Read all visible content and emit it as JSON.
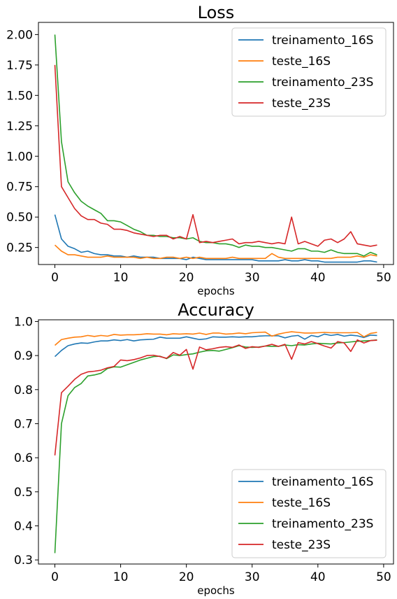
{
  "chart_data": [
    {
      "type": "line",
      "title": "Loss",
      "xlabel": "epochs",
      "ylabel": "",
      "xlim": [
        -2.5,
        51.5
      ],
      "ylim": [
        0.11,
        2.1
      ],
      "xticks": [
        0,
        10,
        20,
        30,
        40,
        50
      ],
      "yticks": [
        0.25,
        0.5,
        0.75,
        1.0,
        1.25,
        1.5,
        1.75,
        2.0
      ],
      "ytick_labels": [
        "0.25",
        "0.50",
        "0.75",
        "1.00",
        "1.25",
        "1.50",
        "1.75",
        "2.00"
      ],
      "legend_position": "top-right",
      "x": [
        0,
        1,
        2,
        3,
        4,
        5,
        6,
        7,
        8,
        9,
        10,
        11,
        12,
        13,
        14,
        15,
        16,
        17,
        18,
        19,
        20,
        21,
        22,
        23,
        24,
        25,
        26,
        27,
        28,
        29,
        30,
        31,
        32,
        33,
        34,
        35,
        36,
        37,
        38,
        39,
        40,
        41,
        42,
        43,
        44,
        45,
        46,
        47,
        48,
        49
      ],
      "series": [
        {
          "name": "treinamento_16S",
          "color": "#1f77b4",
          "values": [
            0.52,
            0.32,
            0.26,
            0.24,
            0.21,
            0.22,
            0.2,
            0.19,
            0.19,
            0.18,
            0.18,
            0.17,
            0.18,
            0.17,
            0.17,
            0.17,
            0.16,
            0.16,
            0.16,
            0.16,
            0.15,
            0.17,
            0.16,
            0.15,
            0.15,
            0.15,
            0.15,
            0.15,
            0.15,
            0.15,
            0.15,
            0.14,
            0.14,
            0.14,
            0.14,
            0.15,
            0.14,
            0.14,
            0.15,
            0.14,
            0.14,
            0.13,
            0.13,
            0.13,
            0.13,
            0.13,
            0.13,
            0.14,
            0.14,
            0.13
          ]
        },
        {
          "name": "teste_16S",
          "color": "#ff7f0e",
          "values": [
            0.27,
            0.22,
            0.19,
            0.19,
            0.18,
            0.17,
            0.17,
            0.17,
            0.18,
            0.17,
            0.17,
            0.17,
            0.17,
            0.16,
            0.17,
            0.16,
            0.16,
            0.17,
            0.17,
            0.16,
            0.17,
            0.16,
            0.17,
            0.16,
            0.16,
            0.16,
            0.16,
            0.17,
            0.16,
            0.16,
            0.16,
            0.16,
            0.16,
            0.2,
            0.17,
            0.16,
            0.16,
            0.16,
            0.16,
            0.16,
            0.16,
            0.16,
            0.16,
            0.17,
            0.17,
            0.17,
            0.18,
            0.17,
            0.19,
            0.18
          ]
        },
        {
          "name": "treinamento_23S",
          "color": "#2ca02c",
          "values": [
            2.0,
            1.12,
            0.79,
            0.7,
            0.63,
            0.59,
            0.56,
            0.53,
            0.47,
            0.47,
            0.46,
            0.43,
            0.4,
            0.38,
            0.35,
            0.35,
            0.34,
            0.34,
            0.33,
            0.33,
            0.32,
            0.33,
            0.3,
            0.29,
            0.29,
            0.28,
            0.28,
            0.27,
            0.25,
            0.27,
            0.26,
            0.26,
            0.25,
            0.25,
            0.24,
            0.23,
            0.22,
            0.24,
            0.24,
            0.22,
            0.22,
            0.21,
            0.23,
            0.21,
            0.2,
            0.2,
            0.2,
            0.18,
            0.21,
            0.19
          ]
        },
        {
          "name": "teste_23S",
          "color": "#d62728",
          "values": [
            1.75,
            0.75,
            0.66,
            0.57,
            0.51,
            0.48,
            0.48,
            0.45,
            0.44,
            0.4,
            0.4,
            0.39,
            0.37,
            0.36,
            0.35,
            0.34,
            0.35,
            0.35,
            0.32,
            0.34,
            0.32,
            0.52,
            0.29,
            0.3,
            0.29,
            0.3,
            0.31,
            0.32,
            0.28,
            0.29,
            0.29,
            0.3,
            0.29,
            0.28,
            0.29,
            0.28,
            0.5,
            0.28,
            0.3,
            0.28,
            0.26,
            0.31,
            0.32,
            0.29,
            0.32,
            0.38,
            0.28,
            0.27,
            0.26,
            0.27
          ]
        }
      ]
    },
    {
      "type": "line",
      "title": "Accuracy",
      "xlabel": "epochs",
      "ylabel": "",
      "xlim": [
        -2.5,
        51.5
      ],
      "ylim": [
        0.288,
        1.005
      ],
      "xticks": [
        0,
        10,
        20,
        30,
        40,
        50
      ],
      "yticks": [
        0.3,
        0.4,
        0.5,
        0.6,
        0.7,
        0.8,
        0.9,
        1.0
      ],
      "ytick_labels": [
        "0.3",
        "0.4",
        "0.5",
        "0.6",
        "0.7",
        "0.8",
        "0.9",
        "1.0"
      ],
      "legend_position": "bottom-right",
      "x": [
        0,
        1,
        2,
        3,
        4,
        5,
        6,
        7,
        8,
        9,
        10,
        11,
        12,
        13,
        14,
        15,
        16,
        17,
        18,
        19,
        20,
        21,
        22,
        23,
        24,
        25,
        26,
        27,
        28,
        29,
        30,
        31,
        32,
        33,
        34,
        35,
        36,
        37,
        38,
        39,
        40,
        41,
        42,
        43,
        44,
        45,
        46,
        47,
        48,
        49
      ],
      "series": [
        {
          "name": "treinamento_16S",
          "color": "#1f77b4",
          "values": [
            0.897,
            0.915,
            0.929,
            0.934,
            0.937,
            0.936,
            0.94,
            0.943,
            0.943,
            0.946,
            0.944,
            0.947,
            0.943,
            0.946,
            0.947,
            0.948,
            0.954,
            0.951,
            0.951,
            0.951,
            0.955,
            0.951,
            0.947,
            0.949,
            0.955,
            0.954,
            0.954,
            0.955,
            0.954,
            0.955,
            0.955,
            0.957,
            0.958,
            0.958,
            0.958,
            0.952,
            0.957,
            0.959,
            0.948,
            0.959,
            0.955,
            0.963,
            0.959,
            0.962,
            0.957,
            0.96,
            0.958,
            0.953,
            0.96,
            0.959
          ]
        },
        {
          "name": "teste_16S",
          "color": "#ff7f0e",
          "values": [
            0.93,
            0.947,
            0.951,
            0.954,
            0.955,
            0.959,
            0.956,
            0.959,
            0.957,
            0.962,
            0.96,
            0.961,
            0.961,
            0.962,
            0.964,
            0.963,
            0.963,
            0.961,
            0.964,
            0.963,
            0.964,
            0.963,
            0.966,
            0.962,
            0.966,
            0.966,
            0.963,
            0.964,
            0.966,
            0.964,
            0.967,
            0.968,
            0.969,
            0.957,
            0.963,
            0.967,
            0.97,
            0.968,
            0.966,
            0.966,
            0.967,
            0.968,
            0.967,
            0.967,
            0.967,
            0.967,
            0.968,
            0.955,
            0.965,
            0.968
          ]
        },
        {
          "name": "treinamento_23S",
          "color": "#2ca02c",
          "values": [
            0.32,
            0.7,
            0.782,
            0.806,
            0.818,
            0.84,
            0.843,
            0.848,
            0.862,
            0.867,
            0.866,
            0.873,
            0.88,
            0.887,
            0.892,
            0.897,
            0.898,
            0.891,
            0.902,
            0.9,
            0.903,
            0.905,
            0.91,
            0.914,
            0.915,
            0.913,
            0.918,
            0.923,
            0.929,
            0.925,
            0.924,
            0.925,
            0.928,
            0.927,
            0.927,
            0.931,
            0.929,
            0.932,
            0.931,
            0.934,
            0.936,
            0.935,
            0.934,
            0.937,
            0.938,
            0.94,
            0.942,
            0.943,
            0.944,
            0.946
          ]
        },
        {
          "name": "teste_23S",
          "color": "#d62728",
          "values": [
            0.607,
            0.791,
            0.81,
            0.83,
            0.845,
            0.852,
            0.854,
            0.857,
            0.864,
            0.868,
            0.887,
            0.885,
            0.888,
            0.893,
            0.9,
            0.901,
            0.897,
            0.892,
            0.909,
            0.901,
            0.918,
            0.86,
            0.925,
            0.917,
            0.92,
            0.924,
            0.926,
            0.924,
            0.931,
            0.921,
            0.926,
            0.924,
            0.928,
            0.933,
            0.927,
            0.933,
            0.889,
            0.938,
            0.934,
            0.941,
            0.935,
            0.928,
            0.922,
            0.941,
            0.937,
            0.912,
            0.946,
            0.937,
            0.944,
            0.945
          ]
        }
      ]
    }
  ]
}
